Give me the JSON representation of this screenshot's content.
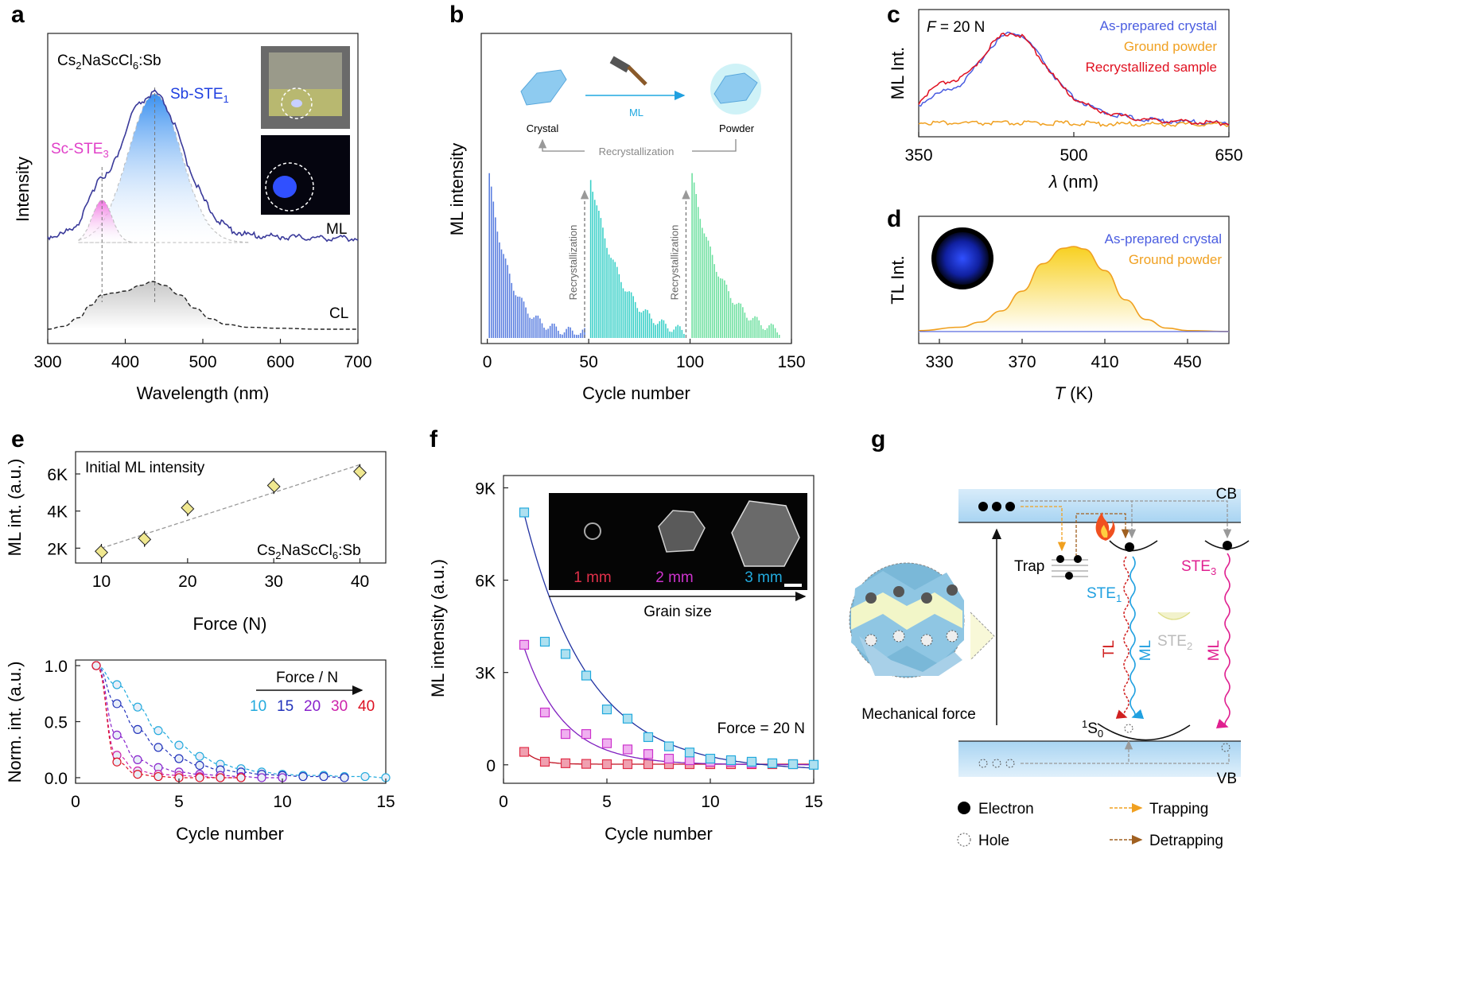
{
  "chart_data": [
    {
      "panel": "a",
      "type": "line",
      "title": "Cs2NaScCl6:Sb",
      "xlabel": "Wavelength (nm)",
      "ylabel": "Intensity",
      "xlim": [
        300,
        700
      ],
      "xticks": [
        300,
        400,
        500,
        600,
        700
      ],
      "peaks": [
        {
          "name": "Sc-STE3",
          "base": "Sc-STE",
          "sub": "3",
          "center": 370,
          "color": "#e040c8"
        },
        {
          "name": "Sb-STE1",
          "base": "Sb-STE",
          "sub": "1",
          "center": 438,
          "color": "#2040e0"
        }
      ],
      "series": [
        {
          "name": "ML",
          "color": "#3a3a9a",
          "x": [
            300,
            320,
            340,
            355,
            365,
            370,
            380,
            395,
            410,
            425,
            438,
            450,
            465,
            480,
            500,
            520,
            540,
            560,
            600,
            650,
            700
          ],
          "y": [
            0.03,
            0.05,
            0.13,
            0.3,
            0.45,
            0.46,
            0.48,
            0.68,
            0.92,
            1.0,
            1.05,
            0.98,
            0.8,
            0.55,
            0.3,
            0.14,
            0.07,
            0.04,
            0.03,
            0.02,
            0.02
          ]
        },
        {
          "name": "CL",
          "color": "#222222",
          "x": [
            300,
            320,
            340,
            355,
            370,
            385,
            400,
            420,
            435,
            450,
            470,
            490,
            510,
            530,
            560,
            600,
            650,
            700
          ],
          "y": [
            0.0,
            0.03,
            0.12,
            0.25,
            0.36,
            0.38,
            0.4,
            0.46,
            0.5,
            0.46,
            0.36,
            0.22,
            0.11,
            0.05,
            0.02,
            0.01,
            0.0,
            0.0
          ]
        }
      ]
    },
    {
      "panel": "b",
      "type": "bar",
      "xlabel": "Cycle number",
      "ylabel": "ML intensity",
      "xlim": [
        0,
        150
      ],
      "xticks": [
        0,
        50,
        100,
        150
      ],
      "markers": [
        {
          "x": 48,
          "label": "Recrystallization"
        },
        {
          "x": 98,
          "label": "Recrystallization"
        }
      ],
      "segments": [
        {
          "start": 1,
          "end": 48,
          "color": "#5b7fe0",
          "peak": 1.0,
          "decay": 0.08
        },
        {
          "start": 51,
          "end": 97,
          "color": "#3ad0c8",
          "peak": 1.0,
          "decay": 0.05
        },
        {
          "start": 101,
          "end": 144,
          "color": "#6ee0a0",
          "peak": 1.0,
          "decay": 0.05
        }
      ],
      "scheme": {
        "left": "Crystal",
        "right": "Powder",
        "arrow": "ML",
        "back": "Recrystallization"
      }
    },
    {
      "panel": "c",
      "type": "line",
      "label": "F = 20 N",
      "xlabel": "λ (nm)",
      "ylabel": "ML Int.",
      "xlim": [
        350,
        650
      ],
      "xticks": [
        350,
        500,
        650
      ],
      "series": [
        {
          "name": "As-prepared crystal",
          "color": "#4a5ce0",
          "x": [
            350,
            360,
            370,
            380,
            390,
            400,
            410,
            420,
            430,
            440,
            450,
            460,
            470,
            480,
            490,
            500,
            520,
            540,
            560,
            580,
            600,
            620,
            650
          ],
          "y": [
            0.22,
            0.3,
            0.35,
            0.4,
            0.44,
            0.55,
            0.7,
            0.85,
            0.95,
            1.0,
            0.96,
            0.85,
            0.7,
            0.54,
            0.4,
            0.3,
            0.18,
            0.12,
            0.08,
            0.06,
            0.05,
            0.04,
            0.03
          ]
        },
        {
          "name": "Ground powder",
          "color": "#f0a020",
          "x": [
            350,
            400,
            450,
            500,
            550,
            600,
            650
          ],
          "y": [
            0.04,
            0.03,
            0.03,
            0.03,
            0.02,
            0.02,
            0.02
          ]
        },
        {
          "name": "Recrystallized sample",
          "color": "#e01020",
          "x": [
            350,
            360,
            370,
            380,
            390,
            400,
            410,
            420,
            430,
            440,
            450,
            460,
            470,
            480,
            490,
            500,
            520,
            540,
            560,
            580,
            600,
            620,
            650
          ],
          "y": [
            0.25,
            0.36,
            0.44,
            0.48,
            0.5,
            0.58,
            0.72,
            0.86,
            0.96,
            1.0,
            0.95,
            0.84,
            0.69,
            0.54,
            0.4,
            0.3,
            0.18,
            0.12,
            0.08,
            0.06,
            0.05,
            0.04,
            0.03
          ]
        }
      ]
    },
    {
      "panel": "d",
      "type": "area",
      "xlabel": "T (K)",
      "ylabel": "TL Int.",
      "xlim": [
        320,
        470
      ],
      "xticks": [
        330,
        370,
        410,
        450
      ],
      "series": [
        {
          "name": "As-prepared crystal",
          "color": "#4a5ce0"
        },
        {
          "name": "Ground powder",
          "color": "#f0a020",
          "x": [
            320,
            340,
            350,
            360,
            370,
            380,
            390,
            395,
            400,
            410,
            420,
            430,
            440,
            450,
            470
          ],
          "y": [
            0.02,
            0.06,
            0.12,
            0.25,
            0.48,
            0.8,
            0.98,
            1.0,
            0.97,
            0.72,
            0.38,
            0.15,
            0.05,
            0.02,
            0.01
          ]
        }
      ]
    },
    {
      "panel": "e-top",
      "type": "scatter",
      "title": "Initial ML intensity",
      "label": "Cs2NaScCl6:Sb",
      "xlabel": "Force (N)",
      "ylabel": "ML int. (a.u.)",
      "xlim": [
        7,
        43
      ],
      "ylim": [
        1200,
        7200
      ],
      "xticks": [
        10,
        20,
        30,
        40
      ],
      "yticks": [
        {
          "v": 2000,
          "t": "2K"
        },
        {
          "v": 4000,
          "t": "4K"
        },
        {
          "v": 6000,
          "t": "6K"
        }
      ],
      "x": [
        10,
        15,
        20,
        30,
        40
      ],
      "y": [
        1800,
        2500,
        4150,
        5350,
        6100
      ],
      "fit": [
        [
          10,
          2000
        ],
        [
          40,
          6500
        ]
      ]
    },
    {
      "panel": "e-bottom",
      "type": "line",
      "legend_title": "Force / N",
      "xlabel": "Cycle number",
      "ylabel": "Norm. int. (a.u.)",
      "xlim": [
        0,
        15
      ],
      "ylim": [
        -0.05,
        1.05
      ],
      "xticks": [
        0,
        5,
        10,
        15
      ],
      "yticks": [
        {
          "v": 0,
          "t": "0.0"
        },
        {
          "v": 0.5,
          "t": "0.5"
        },
        {
          "v": 1,
          "t": "1.0"
        }
      ],
      "series": [
        {
          "name": "10",
          "color": "#22aadd",
          "x": [
            1,
            2,
            3,
            4,
            5,
            6,
            7,
            8,
            9,
            10,
            11,
            12,
            13,
            14,
            15
          ],
          "y": [
            1.0,
            0.83,
            0.63,
            0.42,
            0.29,
            0.19,
            0.12,
            0.08,
            0.05,
            0.03,
            0.02,
            0.02,
            0.01,
            0.01,
            0.0
          ]
        },
        {
          "name": "15",
          "color": "#2233bb",
          "x": [
            1,
            2,
            3,
            4,
            5,
            6,
            7,
            8,
            9,
            10,
            11,
            12,
            13
          ],
          "y": [
            1.0,
            0.66,
            0.43,
            0.27,
            0.17,
            0.11,
            0.07,
            0.05,
            0.03,
            0.02,
            0.01,
            0.01,
            0.0
          ]
        },
        {
          "name": "20",
          "color": "#8822cc",
          "x": [
            1,
            2,
            3,
            4,
            5,
            6,
            7,
            8,
            9,
            10
          ],
          "y": [
            1.0,
            0.38,
            0.16,
            0.09,
            0.05,
            0.03,
            0.02,
            0.01,
            0.0,
            0.0
          ]
        },
        {
          "name": "30",
          "color": "#cc22aa",
          "x": [
            1,
            2,
            3,
            4,
            5,
            6,
            7,
            8
          ],
          "y": [
            1.0,
            0.2,
            0.06,
            0.03,
            0.02,
            0.01,
            0.0,
            0.0
          ]
        },
        {
          "name": "40",
          "color": "#dd1122",
          "x": [
            1,
            2,
            3,
            4,
            5,
            6,
            7,
            8
          ],
          "y": [
            1.0,
            0.14,
            0.03,
            0.01,
            0.0,
            0.0,
            0.0,
            0.0
          ]
        }
      ]
    },
    {
      "panel": "f",
      "type": "scatter",
      "label": "Force = 20 N",
      "inset_title": "Grain size",
      "xlabel": "Cycle number",
      "ylabel": "ML intensity (a.u.)",
      "xlim": [
        0,
        15
      ],
      "ylim": [
        -600,
        9400
      ],
      "xticks": [
        0,
        5,
        10,
        15
      ],
      "yticks": [
        {
          "v": 0,
          "t": "0"
        },
        {
          "v": 3000,
          "t": "3K"
        },
        {
          "v": 6000,
          "t": "6K"
        },
        {
          "v": 9000,
          "t": "9K"
        }
      ],
      "series": [
        {
          "name": "1 mm",
          "color": "#e0304a",
          "fill": "#f0a0b0",
          "x": [
            1,
            2,
            3,
            4,
            5,
            6,
            7,
            8,
            9,
            10,
            11,
            12,
            13,
            14
          ],
          "y": [
            420,
            100,
            50,
            30,
            20,
            20,
            20,
            20,
            20,
            20,
            20,
            20,
            20,
            20
          ]
        },
        {
          "name": "2 mm",
          "color": "#cc33cc",
          "fill": "#f0b0f0",
          "x": [
            1,
            2,
            3,
            4,
            5,
            6,
            7,
            8,
            9,
            10,
            11,
            12
          ],
          "y": [
            3900,
            1700,
            1000,
            1000,
            700,
            500,
            350,
            200,
            150,
            100,
            100,
            50
          ]
        },
        {
          "name": "3 mm",
          "color": "#22aadd",
          "fill": "#aee0f0",
          "x": [
            1,
            2,
            3,
            4,
            5,
            6,
            7,
            8,
            9,
            10,
            11,
            12,
            13,
            14,
            15
          ],
          "y": [
            8200,
            4000,
            3600,
            2900,
            1800,
            1500,
            900,
            600,
            400,
            200,
            150,
            100,
            50,
            20,
            0
          ]
        }
      ]
    }
  ],
  "labels": {
    "panel_a": "a",
    "panel_b": "b",
    "panel_c": "c",
    "panel_d": "d",
    "panel_e": "e",
    "panel_f": "f",
    "panel_g": "g"
  },
  "diagram_g": {
    "cb": "CB",
    "vb": "VB",
    "trap": "Trap",
    "ste1": {
      "base": "STE",
      "sub": "1"
    },
    "ste2": {
      "base": "STE",
      "sub": "2"
    },
    "ste3": {
      "base": "STE",
      "sub": "3"
    },
    "s0": {
      "sup": "1",
      "base": "S",
      "sub": "0"
    },
    "tl": "TL",
    "ml1": "ML",
    "ml3": "ML",
    "force": "Mechanical force",
    "legend": {
      "electron": "Electron",
      "hole": "Hole",
      "trapping": "Trapping",
      "detrapping": "Detrapping"
    }
  }
}
